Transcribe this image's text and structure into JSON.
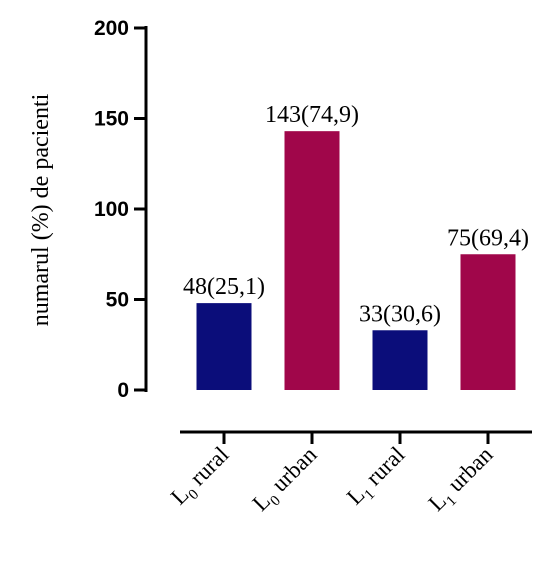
{
  "chart_data": {
    "type": "bar",
    "ylabel": "numarul (%) de pacienti",
    "ylim": [
      0,
      200
    ],
    "yticks": [
      0,
      50,
      100,
      150,
      200
    ],
    "categories": [
      {
        "main": "L",
        "sub": "0",
        "rest": " rural"
      },
      {
        "main": "L",
        "sub": "0",
        "rest": " urban"
      },
      {
        "main": "L",
        "sub": "1",
        "rest": " rural"
      },
      {
        "main": "L",
        "sub": "1",
        "rest": " urban"
      }
    ],
    "values": [
      48,
      143,
      33,
      75
    ],
    "data_labels": [
      "48(25,1)",
      "143(74,9)",
      "33(30,6)",
      "75(69,4)"
    ],
    "colors": [
      "#0b0d7a",
      "#a0064a",
      "#0b0d7a",
      "#a0064a"
    ]
  }
}
